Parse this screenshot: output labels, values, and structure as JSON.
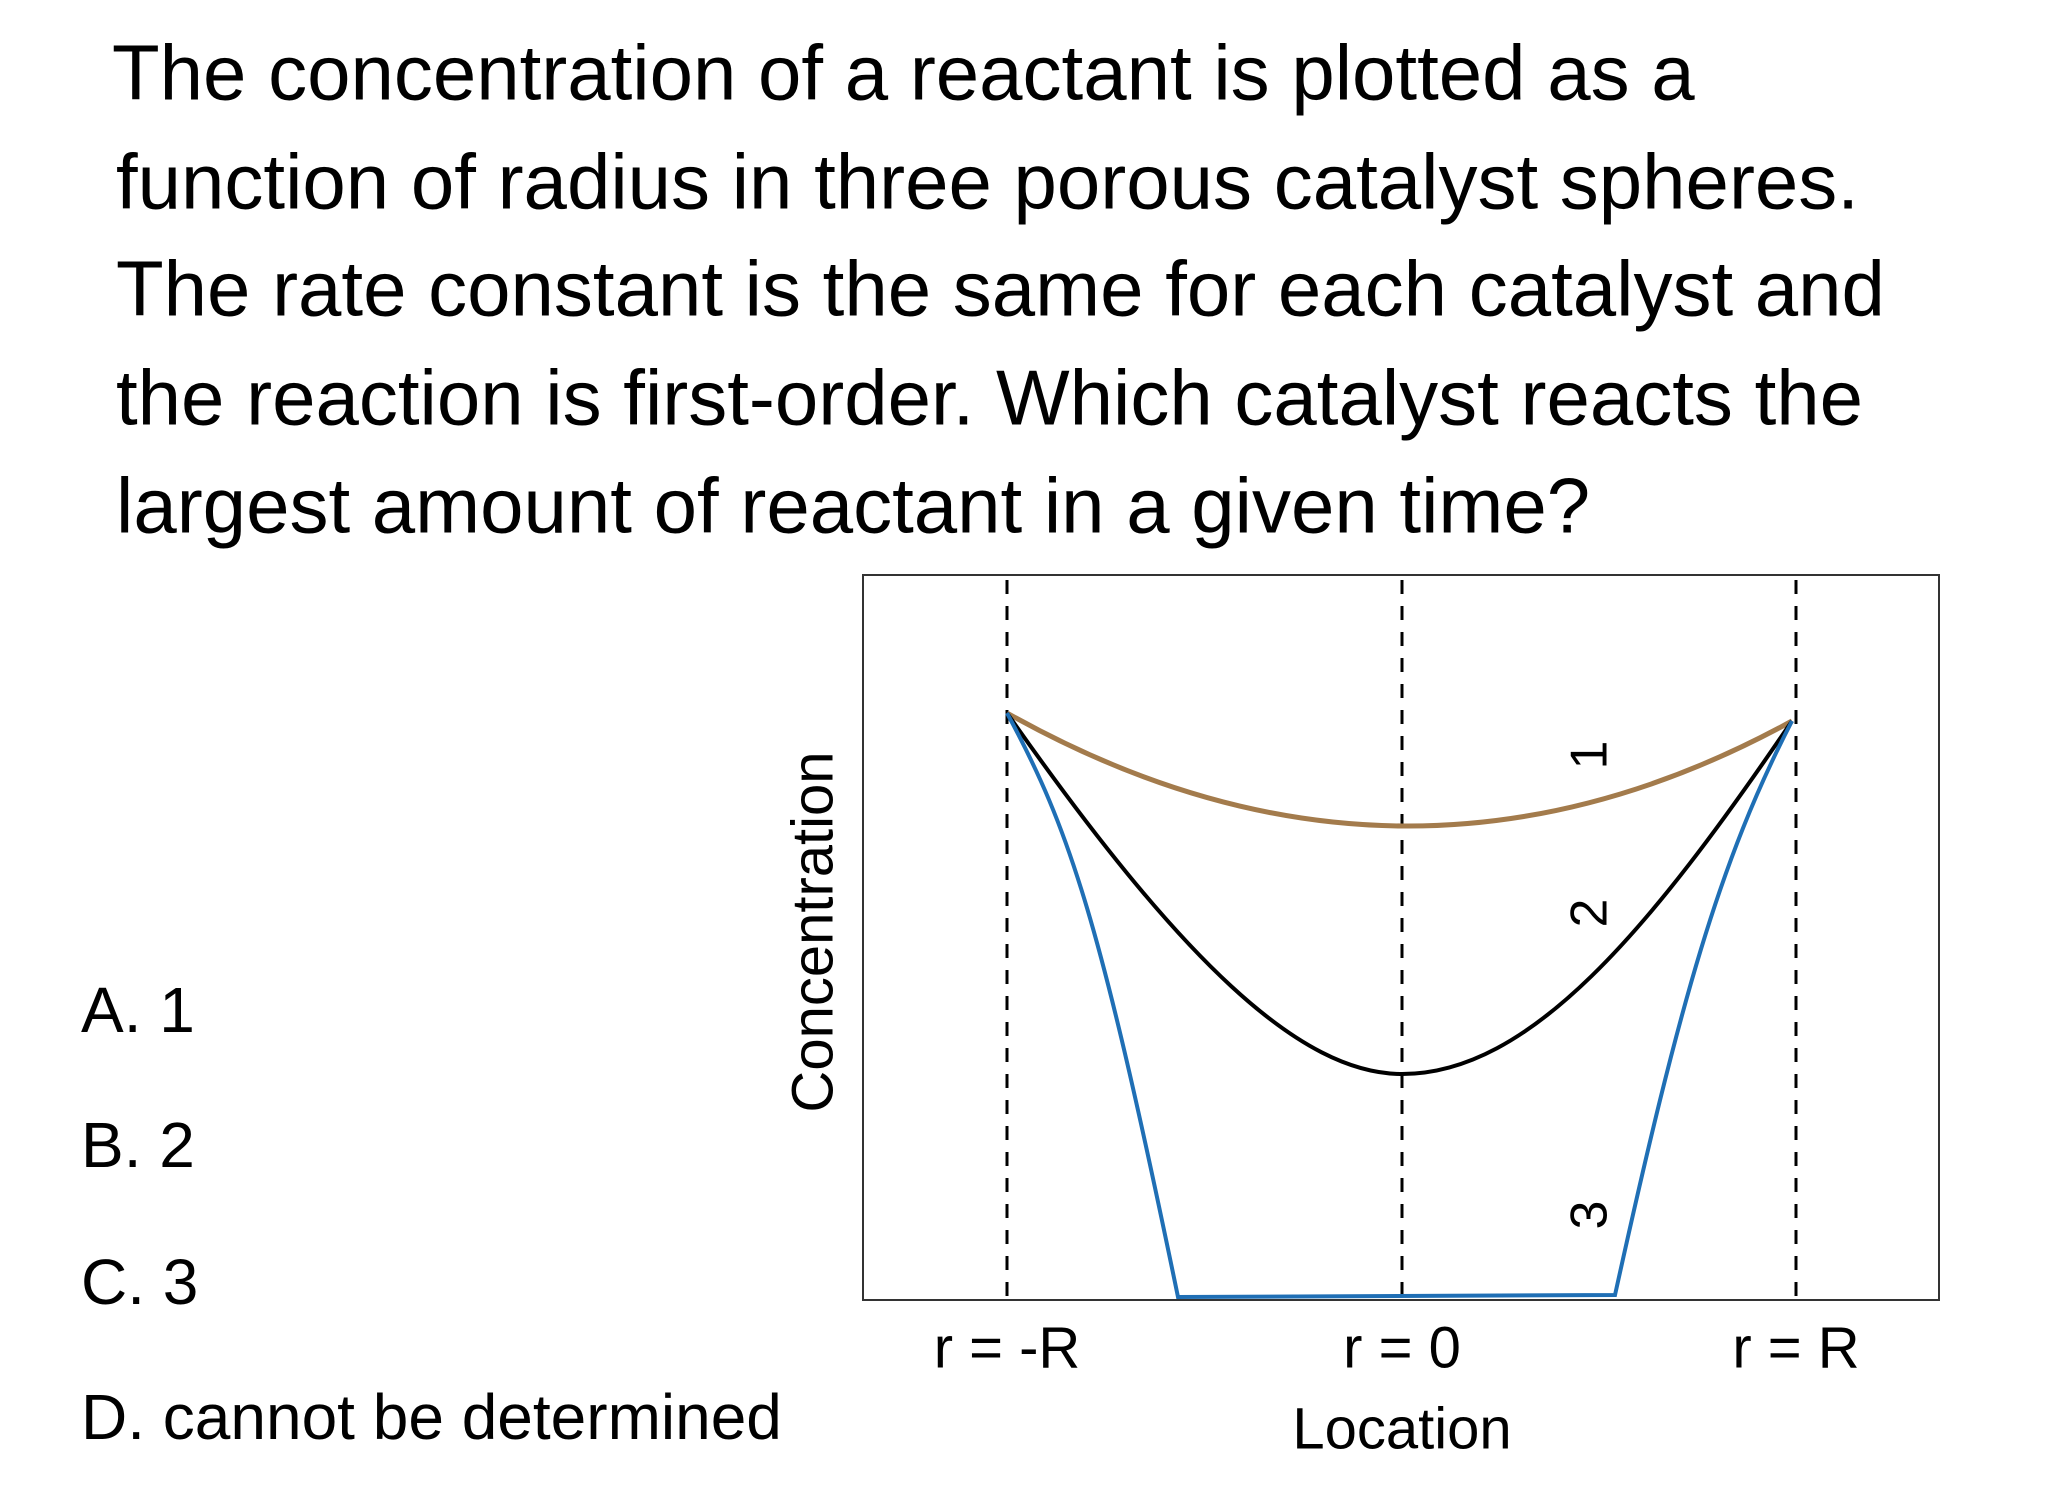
{
  "question": {
    "lines": [
      "The concentration of a reactant is plotted as a",
      "function of radius in three porous catalyst spheres.",
      "The rate constant is the same for each catalyst and",
      "the reaction is first-order. Which catalyst reacts the",
      "largest amount of reactant in a given time?"
    ]
  },
  "options": [
    "A. 1",
    "B. 2",
    "C. 3",
    "D. cannot be determined"
  ],
  "figure": {
    "y_label": "Concentration",
    "x_label": "Location",
    "x_ticks": [
      "r = -R",
      "r = 0",
      "r = R"
    ],
    "curve_labels": [
      "1",
      "2",
      "3"
    ]
  }
}
